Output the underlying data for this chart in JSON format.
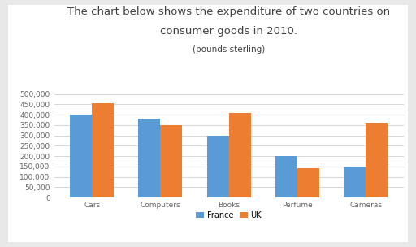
{
  "title_line1": "The chart below shows the expenditure of two countries on",
  "title_line2": "consumer goods in 2010.",
  "title_line3": "(pounds sterling)",
  "categories": [
    "Cars",
    "Computers",
    "Books",
    "Perfume",
    "Cameras"
  ],
  "france_values": [
    400000,
    380000,
    300000,
    200000,
    150000
  ],
  "uk_values": [
    455000,
    350000,
    408000,
    140000,
    360000
  ],
  "france_color": "#5b9bd5",
  "uk_color": "#ed7d31",
  "ylim": [
    0,
    500000
  ],
  "yticks": [
    0,
    50000,
    100000,
    150000,
    200000,
    250000,
    300000,
    350000,
    400000,
    450000,
    500000
  ],
  "legend_labels": [
    "France",
    "UK"
  ],
  "outer_bg_color": "#e8e8e8",
  "inner_bg_color": "#ffffff",
  "bar_width": 0.32,
  "title_fontsize": 9.5,
  "subtitle_fontsize": 7.5,
  "tick_fontsize": 6.5,
  "legend_fontsize": 7,
  "title_color": "#404040",
  "tick_color": "#666666"
}
